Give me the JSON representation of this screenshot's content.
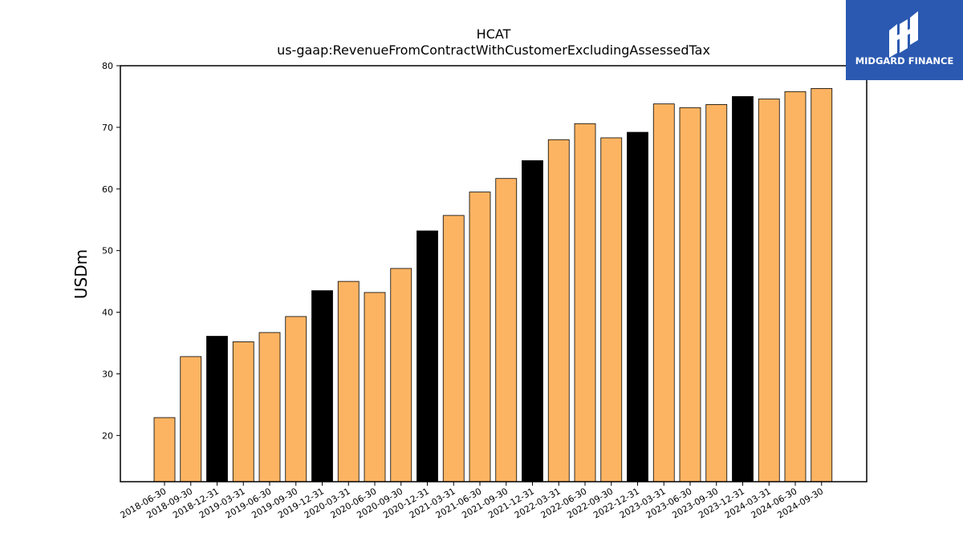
{
  "chart_data": {
    "type": "bar",
    "title": "HCAT",
    "subtitle": "us-gaap:RevenueFromContractWithCustomerExcludingAssessedTax",
    "ylabel": "USDm",
    "xlabel": "",
    "ylim": [
      12.5,
      80
    ],
    "yticks": [
      20,
      30,
      40,
      50,
      60,
      70,
      80
    ],
    "grid": false,
    "categories": [
      "2018-06-30",
      "2018-09-30",
      "2018-12-31",
      "2019-03-31",
      "2019-06-30",
      "2019-09-30",
      "2019-12-31",
      "2020-03-31",
      "2020-06-30",
      "2020-09-30",
      "2020-12-31",
      "2021-03-31",
      "2021-06-30",
      "2021-09-30",
      "2021-12-31",
      "2022-03-31",
      "2022-06-30",
      "2022-09-30",
      "2022-12-31",
      "2023-03-31",
      "2023-06-30",
      "2023-09-30",
      "2023-12-31",
      "2024-03-31",
      "2024-06-30",
      "2024-09-30"
    ],
    "values": [
      22.9,
      32.8,
      36.1,
      35.2,
      36.7,
      39.3,
      43.5,
      45.0,
      43.2,
      47.1,
      53.2,
      55.7,
      59.5,
      61.7,
      64.6,
      68.0,
      70.6,
      68.3,
      69.2,
      73.8,
      73.2,
      73.7,
      75.0,
      74.6,
      75.8,
      76.3
    ],
    "colors": {
      "quarter": "#fdb462",
      "year_end": "#000000",
      "edge": "#000000"
    }
  },
  "logo": {
    "text": "MIDGARD FINANCE",
    "background": "#2b59b1"
  }
}
